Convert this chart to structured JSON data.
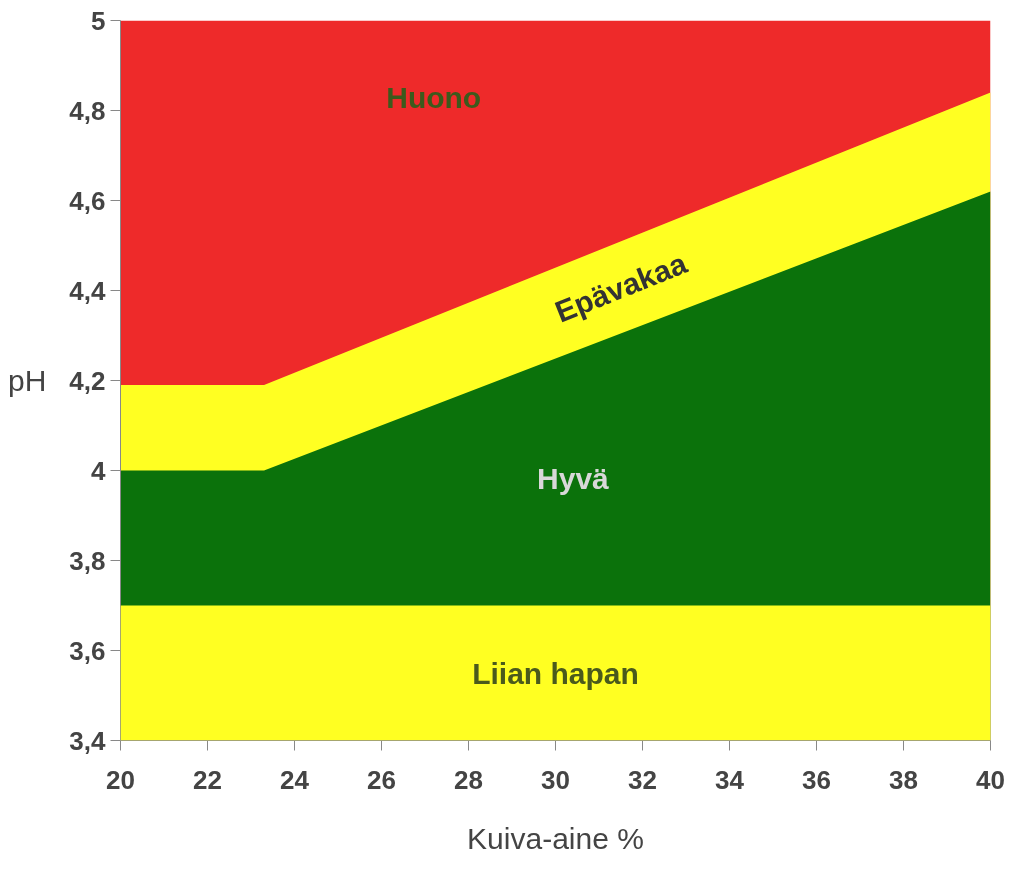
{
  "chart_data": {
    "type": "area",
    "xlabel": "Kuiva-aine %",
    "ylabel": "pH",
    "series": [
      {
        "color": "#ee2a2a",
        "x": [
          20,
          23.3,
          40
        ],
        "values": [
          5,
          5,
          5
        ]
      },
      {
        "color": "#ffff22",
        "x": [
          20,
          23.3,
          40
        ],
        "values": [
          4.19,
          4.19,
          4.84
        ]
      },
      {
        "color": "#0b720b",
        "x": [
          20,
          23.3,
          40
        ],
        "values": [
          4.0,
          4.0,
          4.62
        ]
      }
    ],
    "bands": [
      {
        "axis": "y",
        "from": 3.4,
        "to": 3.7,
        "label": "Liian hapan",
        "color": "#ffff22"
      }
    ],
    "annotations": [
      "Huono",
      "Epävakaa",
      "Hyvä"
    ],
    "xlim": [
      20,
      40
    ],
    "ylim": [
      3.4,
      5
    ],
    "xticks": [
      20,
      22,
      24,
      26,
      28,
      30,
      32,
      34,
      36,
      38,
      40
    ],
    "yticks": [
      {
        "value": 3.4,
        "label": "3,4"
      },
      {
        "value": 3.6,
        "label": "3,6"
      },
      {
        "value": 3.8,
        "label": "3,8"
      },
      4,
      {
        "value": 4.2,
        "label": "4,2"
      },
      {
        "value": 4.4,
        "label": "4,4"
      },
      {
        "value": 4.6,
        "label": "4,6"
      },
      {
        "value": 4.8,
        "label": "4,8"
      },
      5
    ]
  }
}
